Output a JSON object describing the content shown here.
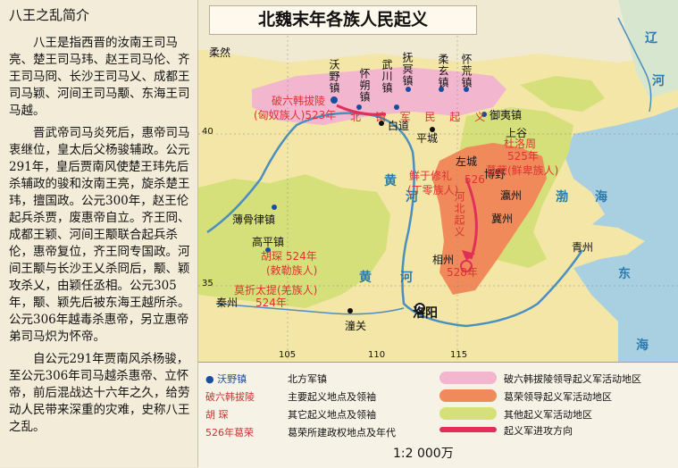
{
  "sidebar": {
    "title": "八王之乱简介",
    "paragraphs": [
      "八王是指西晋的汝南王司马亮、楚王司马玮、赵王司马伦、齐王司马冏、长沙王司马乂、成都王司马颖、河间王司马颙、东海王司马越。",
      "晋武帝司马炎死后，惠帝司马衷继位，皇太后父杨骏辅政。公元291年，皇后贾南风使楚王玮先后杀辅政的骏和汝南王亮，旋杀楚王玮，擅国政。公元300年，赵王伦起兵杀贾，废惠帝自立。齐王冏、成都王颖、河间王颙联合起兵杀伦，惠帝复位，齐王冏专国政。河间王颙与长沙王乂杀冏后，颙、颖攻杀乂，由颖任丞相。公元305年，颙、颖先后被东海王越所杀。公元306年越毒杀惠帝，另立惠帝弟司马炽为怀帝。",
      "自公元291年贾南风杀杨骏，至公元306年司马越杀惠帝、立怀帝，前后混战达十六年之久，给劳动人民带来深重的灾难，史称八王之乱。"
    ]
  },
  "map": {
    "title": "北魏末年各族人民起义",
    "labels": {
      "rouran": "柔然",
      "woye": "沃野镇",
      "huaishuo": "怀朔镇",
      "wuchuan": "武川镇",
      "fuming": "抚冥镇",
      "rouxuan": "柔玄镇",
      "huaihuang": "怀荒镇",
      "yuyi": "御夷镇",
      "baidao": "白道",
      "pingcheng": "平城",
      "shanggu": "上谷",
      "zuocheng": "左城",
      "boye": "博野",
      "yingzhou": "瀛州",
      "jizhou": "冀州",
      "xiangzhou": "相州",
      "qingzhou": "青州",
      "bogu": "薄骨律镇",
      "gaoping": "高平镇",
      "qinzhou": "秦州",
      "tongguan": "潼关",
      "luoyang": "洛阳",
      "huang1": "黄",
      "he1": "河",
      "huang2": "黄",
      "he2": "河",
      "bohai1": "渤",
      "bohai2": "海",
      "donghai1": "东",
      "donghai2": "海",
      "liao1": "辽",
      "liao2": "河",
      "po_label": "破六韩拔陵",
      "po_sub": "(匈奴族人)523年",
      "du_label": "杜洛周",
      "du_sub": "525年",
      "ge_label": "葛荣(鲜卑族人)",
      "ge_sub": "526年",
      "xianyu_label": "鲜于修礼",
      "xianyu_sub": "(丁零族人)",
      "xianyu_year": "526",
      "hu_label": "胡琛 524年",
      "hu_sub": "(敕勒族人)",
      "mo_label": "莫折太提(羌族人)",
      "mo_sub": "524年",
      "ge_year": "528年",
      "beizhen": "北 镇 军 民 起 义",
      "hebei": "河北起义",
      "lon_103": "105",
      "lon_115": "115",
      "lon_110": "110",
      "lat_40": "40",
      "lat_35": "35"
    }
  },
  "legend": {
    "woye_sym": "沃野镇",
    "woye_desc": "北方军镇",
    "po_sym": "破六韩拔陵",
    "po_desc": "主要起义地点及领袖",
    "hu_sym": "胡  琛",
    "hu_desc": "其它起义地点及领袖",
    "ge_sym": "526年葛荣",
    "ge_desc": "葛荣所建政权地点及年代",
    "area1": "破六韩拔陵领导起义军活动地区",
    "area2": "葛荣领导起义军活动地区",
    "area3": "其他起义军活动地区",
    "arrow": "起义军进攻方向",
    "scale": "1:2 000万"
  },
  "colors": {
    "pink_area": "#f2b6cf",
    "orange_area": "#f08a5a",
    "green_area": "#d6e07a",
    "land": "#f3e6a6",
    "sea": "#a8d0e0",
    "river": "#4a8fc0"
  }
}
